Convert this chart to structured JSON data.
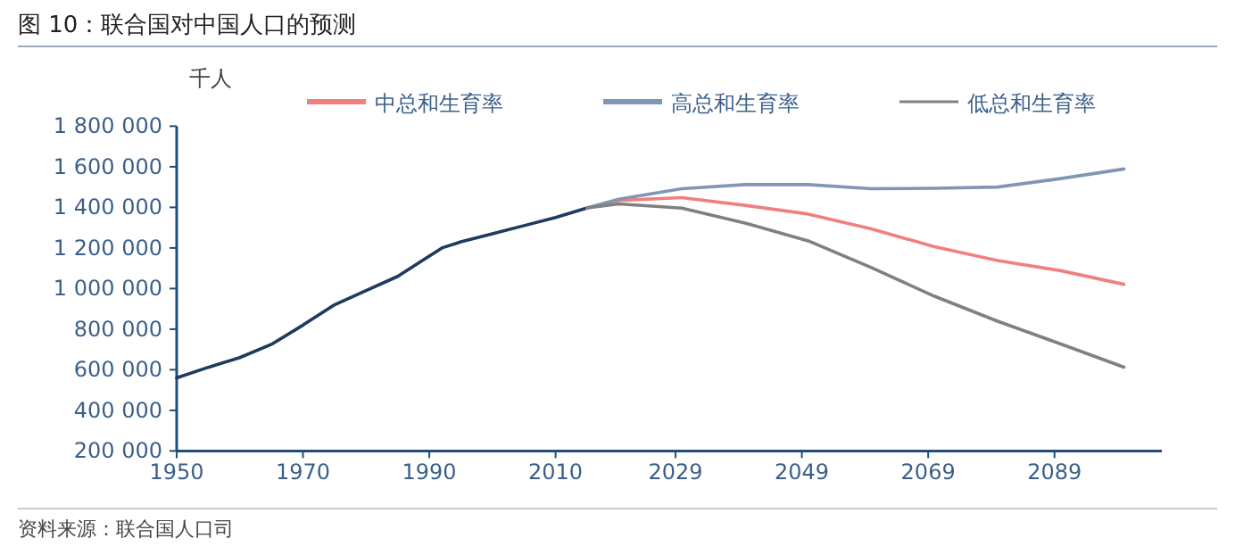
{
  "chart_data": {
    "type": "line",
    "title": "图 10：联合国对中国人口的预测",
    "ylabel": "千人",
    "annotations": [
      "资料来源：联合国人口司"
    ],
    "xlim": [
      1950,
      2106
    ],
    "xticks": [
      1950,
      1970,
      1990,
      2010,
      2029,
      2049,
      2069,
      2089
    ],
    "ylim": [
      200000,
      1800000
    ],
    "yticks": [
      {
        "value": 200000,
        "label": "200 000"
      },
      {
        "value": 400000,
        "label": "400 000"
      },
      {
        "value": 600000,
        "label": "600 000"
      },
      {
        "value": 800000,
        "label": "800 000"
      },
      {
        "value": 1000000,
        "label": "1 000 000"
      },
      {
        "value": 1200000,
        "label": "1 200 000"
      },
      {
        "value": 1400000,
        "label": "1 400 000"
      },
      {
        "value": 1600000,
        "label": "1 600 000"
      },
      {
        "value": 1800000,
        "label": "1 800 000"
      }
    ],
    "grid": false,
    "legend": "top",
    "marker": "none",
    "line_style": "solid",
    "series": [
      {
        "color": "#1f3a5f",
        "x": [
          1950,
          1955,
          1960,
          1965,
          1970,
          1975,
          1980,
          1985,
          1990,
          1992,
          1995,
          2000,
          2005,
          2010,
          2015
        ],
        "values": [
          560000,
          612000,
          660000,
          725000,
          820000,
          920000,
          990000,
          1060000,
          1160000,
          1200000,
          1230000,
          1270000,
          1310000,
          1350000,
          1397000
        ]
      },
      {
        "name": "中总和生育率",
        "color": "#f08080",
        "x": [
          2015,
          2020,
          2030,
          2040,
          2050,
          2060,
          2070,
          2080,
          2090,
          2100
        ],
        "values": [
          1397000,
          1434000,
          1448000,
          1410000,
          1367000,
          1294000,
          1206000,
          1138000,
          1088000,
          1021000
        ]
      },
      {
        "name": "高总和生育率",
        "color": "#8096b4",
        "x": [
          2015,
          2020,
          2030,
          2040,
          2050,
          2060,
          2070,
          2080,
          2090,
          2100
        ],
        "values": [
          1397000,
          1440000,
          1492000,
          1512000,
          1512000,
          1492000,
          1494000,
          1500000,
          1542000,
          1589000
        ]
      },
      {
        "name": "低总和生育率",
        "color": "#808080",
        "x": [
          2015,
          2020,
          2030,
          2040,
          2050,
          2060,
          2070,
          2080,
          2090,
          2100
        ],
        "values": [
          1397000,
          1417000,
          1396000,
          1323000,
          1235000,
          1103000,
          962000,
          839000,
          727000,
          613000
        ]
      }
    ]
  }
}
